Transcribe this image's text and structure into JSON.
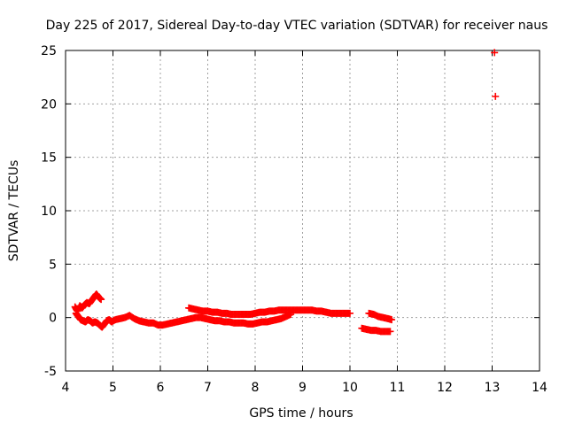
{
  "chart_data": {
    "type": "scatter",
    "title": "Day 225 of 2017, Sidereal Day-to-day VTEC variation (SDTVAR) for receiver naus",
    "xlabel": "GPS time / hours",
    "ylabel": "SDTVAR / TECUs",
    "xlim": [
      4,
      14
    ],
    "ylim": [
      -5,
      25
    ],
    "xticks": [
      4,
      5,
      6,
      7,
      8,
      9,
      10,
      11,
      12,
      13,
      14
    ],
    "yticks": [
      -5,
      0,
      5,
      10,
      15,
      20,
      25
    ],
    "grid": true,
    "series": [
      {
        "name": "SDTVAR",
        "color": "#ff0000",
        "marker": "+",
        "x": [
          4.2,
          4.25,
          4.3,
          4.35,
          4.4,
          4.45,
          4.5,
          4.55,
          4.6,
          4.65,
          4.7,
          4.75,
          4.22,
          4.27,
          4.32,
          4.37,
          4.42,
          4.47,
          4.52,
          4.57,
          4.62,
          4.67,
          4.72,
          4.77,
          4.82,
          4.87,
          4.92,
          4.97,
          5.05,
          5.15,
          5.25,
          5.35,
          5.45,
          5.55,
          5.65,
          5.75,
          5.85,
          5.95,
          6.05,
          6.15,
          6.25,
          6.35,
          6.45,
          6.55,
          6.65,
          6.75,
          6.85,
          6.95,
          7.05,
          7.15,
          7.25,
          7.35,
          7.45,
          7.55,
          7.65,
          7.75,
          7.85,
          7.95,
          8.05,
          8.15,
          8.25,
          8.35,
          8.45,
          8.55,
          8.65,
          8.75,
          6.6,
          6.7,
          6.8,
          6.9,
          7.0,
          7.1,
          7.2,
          7.3,
          7.4,
          7.5,
          7.6,
          7.7,
          7.8,
          7.9,
          8.0,
          8.1,
          8.2,
          8.3,
          8.4,
          8.5,
          8.6,
          8.7,
          8.8,
          8.9,
          9.0,
          9.1,
          9.2,
          9.3,
          9.4,
          9.5,
          9.6,
          9.7,
          9.8,
          9.9,
          10.0,
          10.25,
          10.35,
          10.45,
          10.55,
          10.65,
          10.75,
          10.85,
          10.4,
          10.5,
          10.6,
          10.7,
          10.8,
          10.88,
          13.05,
          13.07
        ],
        "y": [
          1.0,
          0.6,
          1.1,
          0.9,
          1.2,
          1.4,
          1.3,
          1.6,
          1.9,
          2.2,
          1.9,
          1.7,
          0.4,
          0.1,
          -0.2,
          -0.3,
          -0.4,
          -0.2,
          -0.3,
          -0.5,
          -0.4,
          -0.5,
          -0.7,
          -0.9,
          -0.6,
          -0.3,
          -0.2,
          -0.4,
          -0.2,
          -0.1,
          0.0,
          0.2,
          -0.1,
          -0.3,
          -0.4,
          -0.5,
          -0.5,
          -0.7,
          -0.7,
          -0.6,
          -0.5,
          -0.4,
          -0.3,
          -0.2,
          -0.1,
          0.0,
          0.0,
          -0.1,
          -0.2,
          -0.3,
          -0.3,
          -0.4,
          -0.4,
          -0.5,
          -0.5,
          -0.5,
          -0.6,
          -0.6,
          -0.5,
          -0.4,
          -0.4,
          -0.3,
          -0.2,
          -0.1,
          0.1,
          0.3,
          0.9,
          0.8,
          0.7,
          0.6,
          0.6,
          0.5,
          0.5,
          0.4,
          0.4,
          0.3,
          0.3,
          0.3,
          0.3,
          0.3,
          0.4,
          0.5,
          0.5,
          0.6,
          0.6,
          0.7,
          0.7,
          0.7,
          0.7,
          0.7,
          0.7,
          0.7,
          0.7,
          0.6,
          0.6,
          0.5,
          0.4,
          0.4,
          0.4,
          0.4,
          0.4,
          -1.0,
          -1.1,
          -1.2,
          -1.2,
          -1.3,
          -1.3,
          -1.3,
          0.4,
          0.3,
          0.1,
          0.0,
          -0.1,
          -0.2,
          24.8,
          20.7
        ]
      }
    ]
  }
}
